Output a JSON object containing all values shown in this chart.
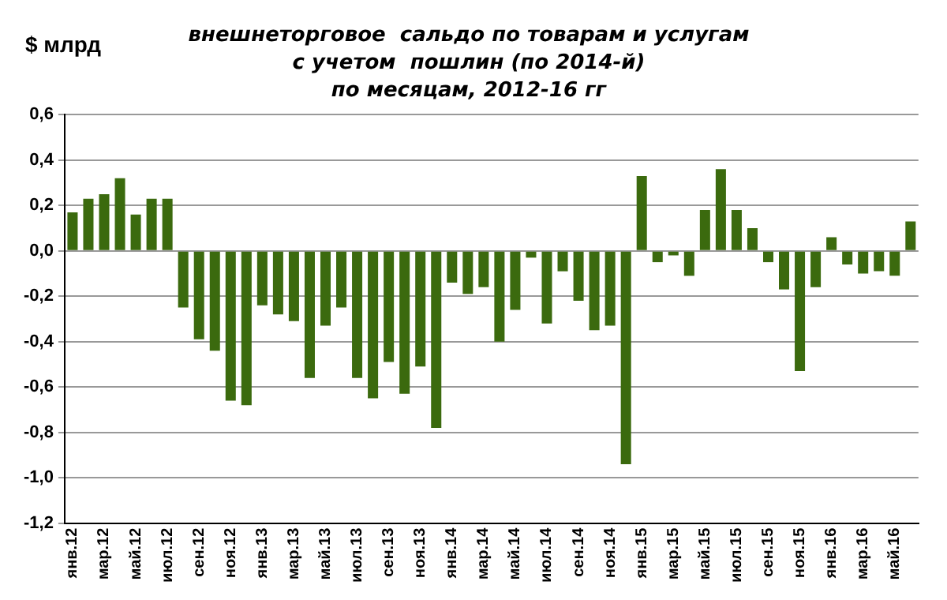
{
  "chart_data": {
    "type": "bar",
    "title": "внешнеторговое  сальдо по товарам и услугам\nс учетом  пошлин (по 2014-й)\nпо месяцам, 2012-16 гг",
    "ylabel": "$ млрд",
    "categories": [
      "янв.12",
      null,
      "мар.12",
      null,
      "май.12",
      null,
      "июл.12",
      null,
      "сен.12",
      null,
      "ноя.12",
      null,
      "янв.13",
      null,
      "мар.13",
      null,
      "май.13",
      null,
      "июл.13",
      null,
      "сен.13",
      null,
      "ноя.13",
      null,
      "янв.14",
      null,
      "мар.14",
      null,
      "май.14",
      null,
      "июл.14",
      null,
      "сен.14",
      null,
      "ноя.14",
      null,
      "янв.15",
      null,
      "мар.15",
      null,
      "май.15",
      null,
      "июл.15",
      null,
      "сен.15",
      null,
      "ноя.15",
      null,
      "янв.16",
      null,
      "мар.16",
      null,
      "май.16",
      null
    ],
    "values": [
      0.17,
      0.23,
      0.25,
      0.32,
      0.16,
      0.23,
      0.23,
      -0.25,
      -0.39,
      -0.44,
      -0.66,
      -0.68,
      -0.24,
      -0.28,
      -0.31,
      -0.56,
      -0.33,
      -0.25,
      -0.56,
      -0.65,
      -0.49,
      -0.63,
      -0.51,
      -0.78,
      -0.14,
      -0.19,
      -0.16,
      -0.4,
      -0.26,
      -0.03,
      -0.32,
      -0.09,
      -0.22,
      -0.35,
      -0.33,
      -0.94,
      0.33,
      -0.05,
      -0.02,
      -0.11,
      0.18,
      0.36,
      0.18,
      0.1,
      -0.05,
      -0.17,
      -0.53,
      -0.16,
      0.06,
      -0.06,
      -0.1,
      -0.09,
      -0.11,
      0.13
    ],
    "color": "#3b6a0e",
    "ylim": [
      -1.2,
      0.6
    ],
    "yticks": [
      {
        "value": -1.2,
        "label": "-1,2"
      },
      {
        "value": -1.0,
        "label": "-1,0"
      },
      {
        "value": -0.8,
        "label": "-0,8"
      },
      {
        "value": -0.6,
        "label": "-0,6"
      },
      {
        "value": -0.4,
        "label": "-0,4"
      },
      {
        "value": -0.2,
        "label": "-0,2"
      },
      {
        "value": 0,
        "label": "0,0"
      },
      {
        "value": 0.2,
        "label": "0,2"
      },
      {
        "value": 0.4,
        "label": "0,4"
      },
      {
        "value": 0.6,
        "label": "0,6"
      }
    ],
    "grid": "y"
  }
}
